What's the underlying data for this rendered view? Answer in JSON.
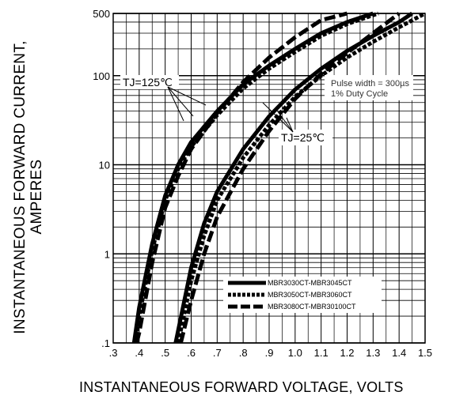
{
  "chart_data": {
    "type": "line",
    "title": "",
    "xlabel": "INSTANTANEOUS FORWARD VOLTAGE,  VOLTS",
    "ylabel_line1": "INSTANTANEOUS FORWARD CURRENT,",
    "ylabel_line2": "AMPERES",
    "x_scale": "linear",
    "y_scale": "log",
    "xlim": [
      0.3,
      1.5
    ],
    "ylim": [
      0.1,
      500
    ],
    "x_ticks": [
      ".3",
      ".4",
      ".5",
      ".6",
      ".7",
      ".8",
      ".9",
      "1.0",
      "1.1",
      "1.2",
      "1.3",
      "1.4",
      "1.5"
    ],
    "y_ticks": [
      {
        "value": 0.1,
        "label": ".1"
      },
      {
        "value": 1,
        "label": "1"
      },
      {
        "value": 10,
        "label": "10"
      },
      {
        "value": 100,
        "label": "100"
      },
      {
        "value": 500,
        "label": "500"
      }
    ],
    "grid": true,
    "annotations": {
      "pulse_line1": "Pulse width = 300µs",
      "pulse_line2": "1% Duty Cycle",
      "tj_hot": "TJ=125℃",
      "tj_cold": "TJ=25℃"
    },
    "legend_position": "bottom-right",
    "series": [
      {
        "name": "MBR3030CT-MBR3045CT",
        "style": "solid",
        "condition": "TJ=125℃",
        "x": [
          0.38,
          0.4,
          0.45,
          0.5,
          0.55,
          0.6,
          0.7,
          0.8,
          0.9,
          1.0,
          1.1,
          1.2,
          1.3
        ],
        "y": [
          0.1,
          0.25,
          1.3,
          4.5,
          10,
          18,
          40,
          80,
          130,
          200,
          300,
          400,
          500
        ]
      },
      {
        "name": "MBR3050CT-MBR3060CT",
        "style": "dotted",
        "condition": "TJ=125℃",
        "x": [
          0.385,
          0.4,
          0.45,
          0.5,
          0.55,
          0.6,
          0.7,
          0.8,
          0.9,
          1.0,
          1.1,
          1.2,
          1.32
        ],
        "y": [
          0.1,
          0.2,
          1.1,
          4,
          9,
          16,
          36,
          72,
          120,
          185,
          280,
          380,
          500
        ]
      },
      {
        "name": "MBR3080CT-MBR30100CT",
        "style": "dashed",
        "condition": "TJ=125℃",
        "x": [
          0.39,
          0.4,
          0.45,
          0.5,
          0.55,
          0.6,
          0.7,
          0.8,
          0.9,
          1.0,
          1.1,
          1.2
        ],
        "y": [
          0.1,
          0.13,
          0.8,
          3.3,
          7.5,
          15,
          38,
          85,
          160,
          270,
          420,
          500
        ]
      },
      {
        "name": "MBR3030CT-MBR3045CT",
        "style": "solid",
        "condition": "TJ=25℃",
        "x": [
          0.54,
          0.6,
          0.65,
          0.7,
          0.8,
          0.9,
          1.0,
          1.1,
          1.2,
          1.3,
          1.4,
          1.45
        ],
        "y": [
          0.1,
          0.7,
          2.2,
          5,
          15,
          35,
          70,
          120,
          190,
          280,
          400,
          500
        ]
      },
      {
        "name": "MBR3050CT-MBR3060CT",
        "style": "dotted",
        "condition": "TJ=25℃",
        "x": [
          0.55,
          0.6,
          0.65,
          0.7,
          0.8,
          0.9,
          1.0,
          1.1,
          1.2,
          1.3,
          1.4,
          1.5
        ],
        "y": [
          0.1,
          0.5,
          1.6,
          4,
          12,
          28,
          58,
          100,
          160,
          240,
          350,
          500
        ]
      },
      {
        "name": "MBR3080CT-MBR30100CT",
        "style": "dashed",
        "condition": "TJ=25℃",
        "x": [
          0.56,
          0.6,
          0.65,
          0.7,
          0.8,
          0.9,
          1.0,
          1.1,
          1.2,
          1.3,
          1.4
        ],
        "y": [
          0.1,
          0.3,
          1.0,
          2.6,
          9,
          24,
          55,
          105,
          180,
          300,
          500
        ]
      }
    ],
    "legend": [
      {
        "label": "MBR3030CT-MBR3045CT",
        "style": "solid"
      },
      {
        "label": "MBR3050CT-MBR3060CT",
        "style": "dotted"
      },
      {
        "label": "MBR3080CT-MBR30100CT",
        "style": "dashed"
      }
    ]
  }
}
